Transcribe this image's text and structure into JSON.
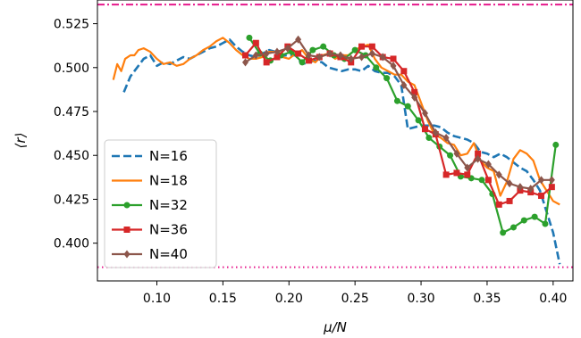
{
  "chart_data": {
    "type": "line",
    "xlabel": "μ/N",
    "ylabel": "⟨r⟩",
    "xlim": [
      0.055,
      0.415
    ],
    "ylim": [
      0.3785,
      0.5385
    ],
    "xticks": [
      0.1,
      0.15,
      0.2,
      0.25,
      0.3,
      0.35,
      0.4
    ],
    "xtick_labels": [
      "0.10",
      "0.15",
      "0.20",
      "0.25",
      "0.30",
      "0.35",
      "0.40"
    ],
    "yticks": [
      0.4,
      0.425,
      0.45,
      0.475,
      0.5,
      0.525
    ],
    "ytick_labels": [
      "0.400",
      "0.425",
      "0.450",
      "0.475",
      "0.500",
      "0.525"
    ],
    "grid": false,
    "legend_position": "lower-left",
    "reference_lines": [
      {
        "y": 0.5359,
        "color": "#e6198c",
        "style": "dashdot"
      },
      {
        "y": 0.3863,
        "color": "#e6198c",
        "style": "dotted"
      }
    ],
    "series": [
      {
        "name": "N=16",
        "color": "#1f77b4",
        "style": "dashed",
        "marker": "none",
        "x": [
          0.075,
          0.08,
          0.085,
          0.09,
          0.095,
          0.1,
          0.105,
          0.11,
          0.115,
          0.12,
          0.125,
          0.13,
          0.135,
          0.14,
          0.145,
          0.15,
          0.155,
          0.16,
          0.165,
          0.17,
          0.175,
          0.18,
          0.185,
          0.19,
          0.195,
          0.2,
          0.205,
          0.21,
          0.215,
          0.22,
          0.225,
          0.23,
          0.235,
          0.24,
          0.245,
          0.25,
          0.255,
          0.26,
          0.265,
          0.27,
          0.275,
          0.28,
          0.285,
          0.29,
          0.295,
          0.3,
          0.305,
          0.31,
          0.315,
          0.32,
          0.325,
          0.33,
          0.335,
          0.34,
          0.345,
          0.35,
          0.355,
          0.36,
          0.365,
          0.37,
          0.375,
          0.38,
          0.385,
          0.39,
          0.395,
          0.4,
          0.405
        ],
        "y": [
          0.486,
          0.495,
          0.5,
          0.505,
          0.507,
          0.501,
          0.503,
          0.502,
          0.504,
          0.506,
          0.505,
          0.507,
          0.509,
          0.511,
          0.512,
          0.514,
          0.516,
          0.512,
          0.509,
          0.507,
          0.506,
          0.508,
          0.51,
          0.509,
          0.507,
          0.507,
          0.507,
          0.502,
          0.503,
          0.504,
          0.503,
          0.5,
          0.499,
          0.498,
          0.499,
          0.499,
          0.498,
          0.501,
          0.498,
          0.497,
          0.497,
          0.495,
          0.49,
          0.465,
          0.466,
          0.467,
          0.467,
          0.467,
          0.466,
          0.463,
          0.461,
          0.46,
          0.459,
          0.457,
          0.452,
          0.451,
          0.449,
          0.451,
          0.449,
          0.446,
          0.443,
          0.441,
          0.436,
          0.43,
          0.418,
          0.406,
          0.388
        ]
      },
      {
        "name": "N=18",
        "color": "#ff7f0e",
        "style": "solid",
        "marker": "none",
        "x": [
          0.067,
          0.07,
          0.073,
          0.076,
          0.08,
          0.083,
          0.086,
          0.09,
          0.095,
          0.1,
          0.105,
          0.11,
          0.115,
          0.12,
          0.125,
          0.13,
          0.135,
          0.14,
          0.145,
          0.15,
          0.155,
          0.16,
          0.165,
          0.17,
          0.175,
          0.18,
          0.185,
          0.19,
          0.195,
          0.2,
          0.205,
          0.21,
          0.215,
          0.22,
          0.225,
          0.23,
          0.235,
          0.24,
          0.245,
          0.25,
          0.255,
          0.26,
          0.265,
          0.27,
          0.275,
          0.28,
          0.285,
          0.29,
          0.295,
          0.3,
          0.305,
          0.31,
          0.315,
          0.32,
          0.325,
          0.33,
          0.335,
          0.34,
          0.345,
          0.35,
          0.355,
          0.36,
          0.365,
          0.37,
          0.375,
          0.38,
          0.385,
          0.39,
          0.395,
          0.4,
          0.405
        ],
        "y": [
          0.493,
          0.502,
          0.498,
          0.505,
          0.507,
          0.507,
          0.51,
          0.511,
          0.509,
          0.505,
          0.502,
          0.503,
          0.501,
          0.502,
          0.505,
          0.507,
          0.51,
          0.512,
          0.515,
          0.517,
          0.514,
          0.51,
          0.507,
          0.505,
          0.505,
          0.506,
          0.509,
          0.509,
          0.506,
          0.505,
          0.508,
          0.51,
          0.505,
          0.503,
          0.507,
          0.508,
          0.505,
          0.507,
          0.507,
          0.51,
          0.512,
          0.513,
          0.505,
          0.5,
          0.498,
          0.496,
          0.496,
          0.492,
          0.49,
          0.48,
          0.47,
          0.462,
          0.46,
          0.457,
          0.456,
          0.45,
          0.451,
          0.457,
          0.447,
          0.443,
          0.441,
          0.427,
          0.435,
          0.448,
          0.453,
          0.451,
          0.447,
          0.436,
          0.43,
          0.424,
          0.422
        ]
      },
      {
        "name": "N=32",
        "color": "#2ca02c",
        "style": "solid",
        "marker": "circle",
        "x": [
          0.17,
          0.178,
          0.186,
          0.194,
          0.202,
          0.21,
          0.218,
          0.226,
          0.234,
          0.242,
          0.25,
          0.258,
          0.266,
          0.274,
          0.282,
          0.29,
          0.298,
          0.306,
          0.314,
          0.322,
          0.33,
          0.338,
          0.346,
          0.354,
          0.362,
          0.37,
          0.378,
          0.386,
          0.394,
          0.402
        ],
        "y": [
          0.517,
          0.508,
          0.504,
          0.507,
          0.509,
          0.503,
          0.51,
          0.512,
          0.507,
          0.505,
          0.51,
          0.507,
          0.5,
          0.494,
          0.481,
          0.478,
          0.47,
          0.46,
          0.455,
          0.45,
          0.438,
          0.437,
          0.436,
          0.428,
          0.406,
          0.409,
          0.413,
          0.415,
          0.411,
          0.456
        ]
      },
      {
        "name": "N=36",
        "color": "#d62728",
        "style": "solid",
        "marker": "square",
        "x": [
          0.167,
          0.175,
          0.183,
          0.191,
          0.199,
          0.207,
          0.215,
          0.223,
          0.231,
          0.239,
          0.247,
          0.255,
          0.263,
          0.271,
          0.279,
          0.287,
          0.295,
          0.303,
          0.311,
          0.319,
          0.327,
          0.335,
          0.343,
          0.351,
          0.359,
          0.367,
          0.375,
          0.383,
          0.391,
          0.399
        ],
        "y": [
          0.507,
          0.514,
          0.503,
          0.506,
          0.512,
          0.508,
          0.504,
          0.506,
          0.508,
          0.506,
          0.503,
          0.512,
          0.512,
          0.506,
          0.505,
          0.498,
          0.486,
          0.465,
          0.462,
          0.439,
          0.44,
          0.439,
          0.451,
          0.436,
          0.422,
          0.424,
          0.43,
          0.429,
          0.427,
          0.432
        ]
      },
      {
        "name": "N=40",
        "color": "#8c564b",
        "style": "solid",
        "marker": "diamond",
        "x": [
          0.167,
          0.175,
          0.183,
          0.191,
          0.199,
          0.207,
          0.215,
          0.223,
          0.231,
          0.239,
          0.247,
          0.255,
          0.263,
          0.271,
          0.279,
          0.287,
          0.295,
          0.303,
          0.311,
          0.319,
          0.327,
          0.335,
          0.343,
          0.351,
          0.359,
          0.367,
          0.375,
          0.383,
          0.391,
          0.399
        ],
        "y": [
          0.503,
          0.507,
          0.508,
          0.509,
          0.511,
          0.516,
          0.507,
          0.506,
          0.508,
          0.507,
          0.505,
          0.506,
          0.508,
          0.506,
          0.501,
          0.49,
          0.483,
          0.474,
          0.463,
          0.46,
          0.451,
          0.443,
          0.448,
          0.445,
          0.439,
          0.434,
          0.432,
          0.431,
          0.436,
          0.436
        ]
      }
    ]
  }
}
